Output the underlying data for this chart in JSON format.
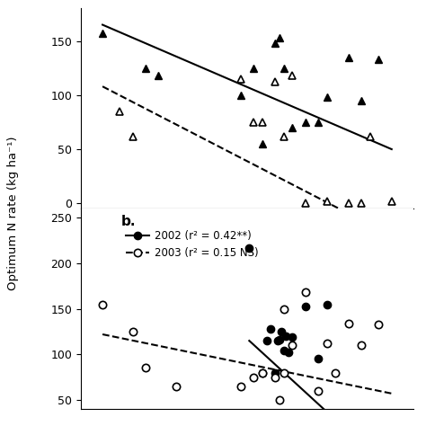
{
  "top_panel": {
    "filled_triangles_x": [
      1.8,
      2.8,
      3.1,
      5.0,
      5.3,
      5.5,
      5.8,
      5.9,
      6.0,
      6.2,
      6.5,
      6.8,
      7.0,
      7.5,
      7.8,
      8.2
    ],
    "filled_triangles_y": [
      157,
      125,
      118,
      100,
      125,
      55,
      148,
      153,
      125,
      70,
      75,
      75,
      98,
      135,
      95,
      133
    ],
    "open_triangles_x": [
      2.2,
      2.5,
      5.0,
      5.3,
      5.5,
      5.8,
      6.0,
      6.2,
      6.5,
      7.0,
      7.5,
      7.8,
      8.0,
      8.5
    ],
    "open_triangles_y": [
      85,
      62,
      115,
      75,
      75,
      112,
      62,
      118,
      0,
      2,
      0,
      0,
      62,
      2
    ],
    "solid_line_x": [
      1.8,
      8.5
    ],
    "solid_line_y": [
      165,
      50
    ],
    "dashed_line_x": [
      1.8,
      8.5
    ],
    "dashed_line_y": [
      108,
      -30
    ],
    "ylim": [
      -5,
      180
    ],
    "yticks": [
      0,
      50,
      100,
      150
    ]
  },
  "bottom_panel": {
    "legend_2002": "2002 (r² = 0.42**)",
    "legend_2003": "2003 (r² = 0.15 NS)",
    "filled_circles_x": [
      5.2,
      5.5,
      5.6,
      5.7,
      5.8,
      5.85,
      5.9,
      5.95,
      6.0,
      6.05,
      6.1,
      6.2,
      6.5,
      6.8,
      7.0
    ],
    "filled_circles_y": [
      217,
      80,
      115,
      128,
      80,
      115,
      116,
      125,
      104,
      120,
      102,
      119,
      153,
      95,
      155
    ],
    "open_circles_x": [
      1.8,
      2.5,
      2.8,
      3.5,
      5.0,
      5.3,
      5.5,
      5.8,
      5.9,
      6.0,
      6.0,
      6.2,
      6.5,
      6.8,
      7.0,
      7.2,
      7.5,
      7.8,
      8.2
    ],
    "open_circles_y": [
      155,
      125,
      85,
      65,
      65,
      75,
      80,
      75,
      50,
      80,
      150,
      110,
      168,
      60,
      112,
      80,
      134,
      110,
      133
    ],
    "solid_line_x": [
      5.2,
      7.5
    ],
    "solid_line_y": [
      115,
      15
    ],
    "dashed_line_x": [
      1.8,
      8.5
    ],
    "dashed_line_y": [
      122,
      57
    ],
    "ylim": [
      40,
      260
    ],
    "yticks": [
      50,
      100,
      150,
      200,
      250
    ]
  },
  "ylabel": "Optimum N rate (kg ha⁻¹)",
  "background_color": "#ffffff",
  "marker_size": 6,
  "line_width": 1.5,
  "xlim": [
    1.3,
    9.0
  ]
}
